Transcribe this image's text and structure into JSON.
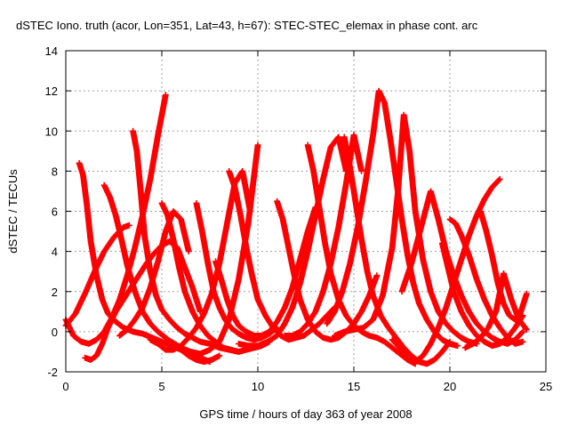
{
  "chart_data": {
    "type": "scatter",
    "title": "dSTEC Iono. truth (acor, Lon=351, Lat=43, h=67): STEC-STEC_elemax in phase cont. arc",
    "xlabel": "GPS time / hours of day 363 of year 2008",
    "ylabel": "dSTEC  / TECUs",
    "xlim": [
      0,
      25
    ],
    "ylim": [
      -2,
      14
    ],
    "xticks": [
      0,
      5,
      10,
      15,
      20,
      25
    ],
    "yticks": [
      -2,
      0,
      2,
      4,
      6,
      8,
      10,
      12,
      14
    ],
    "xtick_labels": [
      "0",
      "5",
      "10",
      "15",
      "20",
      "25"
    ],
    "ytick_labels": [
      "-2",
      "0",
      "2",
      "4",
      "6",
      "8",
      "10",
      "12",
      "14"
    ],
    "grid": true,
    "marker": "plus",
    "color": "#ff0000",
    "series": [
      {
        "x": [
          0.0,
          0.4,
          0.8,
          1.2,
          1.6,
          2.0,
          2.4,
          2.8,
          3.2,
          3.6,
          4.0,
          4.4,
          4.8,
          5.2
        ],
        "values": [
          0.6,
          -0.2,
          -0.5,
          -0.6,
          -0.4,
          0.0,
          0.7,
          1.6,
          2.8,
          4.2,
          5.8,
          7.6,
          9.8,
          11.8
        ]
      },
      {
        "x": [
          0.7,
          0.9,
          1.1,
          1.3,
          1.6,
          1.9,
          2.2,
          2.6,
          3.0,
          3.5,
          4.0,
          4.5,
          5.0,
          5.5,
          6.0,
          6.5,
          7.0,
          7.5
        ],
        "values": [
          8.4,
          7.8,
          6.3,
          4.5,
          2.8,
          1.6,
          0.9,
          0.5,
          0.2,
          0.0,
          -0.1,
          -0.3,
          -0.5,
          -0.7,
          -0.9,
          -1.1,
          -1.3,
          -1.5
        ]
      },
      {
        "x": [
          0.0,
          0.5,
          1.0,
          1.5,
          2.0,
          2.5,
          3.0,
          3.3
        ],
        "values": [
          0.3,
          0.9,
          1.9,
          3.0,
          4.0,
          4.7,
          5.2,
          5.3
        ]
      },
      {
        "x": [
          1.0,
          1.3,
          1.6,
          1.9,
          2.2,
          2.6,
          3.0,
          3.4,
          3.8,
          4.2,
          4.6,
          5.0,
          5.4,
          5.8,
          6.2,
          6.6,
          7.0
        ],
        "values": [
          -1.3,
          -1.4,
          -1.2,
          -0.6,
          0.2,
          1.0,
          1.6,
          2.2,
          2.8,
          3.4,
          3.9,
          4.3,
          4.5,
          4.2,
          3.2,
          2.2,
          1.0
        ]
      },
      {
        "x": [
          2.0,
          2.3,
          2.6,
          2.9,
          3.2,
          3.6,
          4.0,
          4.4,
          4.8,
          5.2,
          5.6,
          6.0,
          6.4,
          6.8,
          7.2,
          7.6,
          8.0
        ],
        "values": [
          7.3,
          6.7,
          5.8,
          4.6,
          3.3,
          2.0,
          1.0,
          0.4,
          0.0,
          -0.3,
          -0.6,
          -0.9,
          -1.2,
          -1.4,
          -1.5,
          -1.4,
          -1.2
        ]
      },
      {
        "x": [
          3.5,
          3.7,
          3.9,
          4.1,
          4.4,
          4.7,
          5.0,
          5.4,
          5.8,
          6.2,
          6.6,
          7.0,
          7.5,
          8.0,
          8.5,
          9.0
        ],
        "values": [
          10.0,
          9.0,
          7.0,
          4.8,
          3.0,
          1.8,
          1.1,
          0.6,
          0.2,
          -0.1,
          -0.3,
          -0.5,
          -0.6,
          -0.8,
          -0.9,
          -1.0
        ]
      },
      {
        "x": [
          2.8,
          3.2,
          3.6,
          4.0,
          4.4,
          4.8,
          5.2,
          5.6,
          6.0,
          6.4
        ],
        "values": [
          -0.2,
          0.1,
          0.6,
          1.2,
          2.2,
          3.5,
          5.0,
          6.0,
          5.6,
          4.0
        ]
      },
      {
        "x": [
          5.0,
          5.3,
          5.6,
          5.9,
          6.2,
          6.6,
          7.0,
          7.4,
          7.8,
          8.2,
          8.6,
          9.0,
          9.4,
          9.8,
          10.2,
          10.6
        ],
        "values": [
          6.4,
          5.8,
          4.6,
          3.2,
          2.0,
          1.0,
          0.3,
          -0.2,
          -0.5,
          -0.8,
          -0.9,
          -1.0,
          -0.9,
          -0.8,
          -0.7,
          -0.5
        ]
      },
      {
        "x": [
          4.4,
          4.8,
          5.2,
          5.6,
          6.0,
          6.4,
          6.8,
          7.2,
          7.6,
          8.0,
          8.4,
          8.8,
          9.2,
          9.6
        ],
        "values": [
          -0.4,
          -0.6,
          -0.9,
          -0.9,
          -0.7,
          -0.3,
          0.2,
          0.9,
          1.9,
          3.4,
          5.4,
          7.4,
          8.0,
          6.0
        ]
      },
      {
        "x": [
          5.5,
          6.0,
          6.5,
          7.0,
          7.5,
          8.0,
          8.5,
          9.0,
          9.5,
          10.0
        ],
        "values": [
          -0.5,
          -0.8,
          -1.0,
          -1.1,
          -0.9,
          -0.5,
          0.6,
          2.6,
          5.4,
          9.3
        ]
      },
      {
        "x": [
          6.8,
          7.1,
          7.4,
          7.7,
          8.0,
          8.3,
          8.6,
          9.0,
          9.4,
          9.8,
          10.2,
          10.6,
          11.0
        ],
        "values": [
          6.4,
          5.0,
          3.4,
          2.0,
          1.2,
          0.6,
          0.2,
          -0.1,
          -0.3,
          -0.4,
          -0.3,
          -0.1,
          0.2
        ]
      },
      {
        "x": [
          8.5,
          8.8,
          9.1,
          9.4,
          9.7,
          10.0,
          10.4,
          10.8,
          11.2,
          11.6,
          12.0,
          12.4,
          12.8,
          13.2,
          13.6,
          14.0
        ],
        "values": [
          8.0,
          7.2,
          5.8,
          4.2,
          2.8,
          1.6,
          0.8,
          0.2,
          -0.2,
          -0.4,
          -0.3,
          -0.2,
          0.1,
          0.4,
          0.8,
          1.2
        ]
      },
      {
        "x": [
          7.8,
          8.1,
          8.4,
          8.7,
          9.0,
          9.4,
          9.8,
          10.2,
          10.6,
          11.0,
          11.4,
          11.8,
          12.2,
          12.6,
          13.0
        ],
        "values": [
          3.5,
          2.6,
          1.6,
          0.8,
          0.3,
          0.0,
          -0.2,
          -0.2,
          0.0,
          0.5,
          1.2,
          2.2,
          3.6,
          5.0,
          6.2
        ]
      },
      {
        "x": [
          11.0,
          11.3,
          11.6,
          11.9,
          12.2,
          12.6,
          13.0,
          13.4,
          13.8,
          14.2,
          14.6,
          15.0,
          15.4,
          15.8,
          16.2
        ],
        "values": [
          6.5,
          5.6,
          4.2,
          2.8,
          1.6,
          0.6,
          0.0,
          -0.3,
          -0.4,
          -0.3,
          0.0,
          0.4,
          1.0,
          1.8,
          2.8
        ]
      },
      {
        "x": [
          9.0,
          9.5,
          10.0,
          10.5,
          11.0,
          11.4,
          11.8,
          12.2,
          12.6,
          13.0,
          13.4,
          13.8,
          14.2,
          14.6
        ],
        "values": [
          -0.6,
          -0.7,
          -0.7,
          -0.5,
          -0.2,
          0.4,
          1.2,
          2.4,
          4.0,
          5.8,
          7.6,
          9.2,
          9.7,
          8.0
        ]
      },
      {
        "x": [
          12.6,
          12.9,
          13.2,
          13.5,
          13.8,
          14.2,
          14.6,
          15.0,
          15.4,
          15.8,
          16.2,
          16.6,
          17.0,
          17.4,
          17.8,
          18.2
        ],
        "values": [
          9.3,
          8.0,
          6.2,
          4.4,
          2.9,
          1.6,
          0.8,
          0.3,
          0.0,
          -0.2,
          -0.3,
          -0.5,
          -0.8,
          -1.1,
          -1.4,
          -1.6
        ]
      },
      {
        "x": [
          11.4,
          11.8,
          12.2,
          12.6,
          13.0,
          13.4,
          13.8,
          14.2,
          14.6,
          15.0,
          15.4
        ],
        "values": [
          -0.2,
          -0.2,
          0.0,
          0.4,
          1.0,
          2.0,
          3.4,
          5.2,
          7.4,
          9.8,
          8.0
        ]
      },
      {
        "x": [
          14.5,
          14.8,
          15.1,
          15.4,
          15.7,
          16.0,
          16.4,
          16.8,
          17.2,
          17.6,
          18.0,
          18.4,
          18.8,
          19.2,
          19.6,
          20.0
        ],
        "values": [
          9.7,
          8.2,
          6.4,
          4.6,
          3.0,
          1.8,
          0.8,
          0.2,
          -0.3,
          -0.8,
          -1.2,
          -1.5,
          -1.6,
          -1.4,
          -1.0,
          -0.5
        ]
      },
      {
        "x": [
          13.6,
          14.0,
          14.4,
          14.8,
          15.2,
          15.6,
          16.0,
          16.3,
          16.6,
          16.9,
          17.2,
          17.5,
          17.8,
          18.1,
          18.4,
          18.8,
          19.2,
          19.6,
          20.0,
          20.4
        ],
        "values": [
          0.4,
          1.0,
          2.0,
          3.4,
          5.2,
          7.4,
          9.8,
          12.0,
          11.4,
          9.6,
          7.6,
          5.6,
          3.8,
          2.4,
          1.4,
          0.6,
          0.0,
          -0.4,
          -0.6,
          -0.7
        ]
      },
      {
        "x": [
          14.0,
          14.5,
          15.0,
          15.5,
          16.0,
          16.5,
          17.0,
          17.3,
          17.6,
          17.9,
          18.2,
          18.6,
          19.0,
          19.4,
          19.8,
          20.2,
          20.6,
          21.0,
          21.4
        ],
        "values": [
          -0.2,
          0.0,
          0.1,
          0.2,
          0.6,
          1.8,
          4.2,
          7.0,
          10.8,
          9.0,
          6.0,
          3.6,
          2.0,
          1.0,
          0.4,
          0.0,
          -0.3,
          -0.5,
          -0.6
        ]
      },
      {
        "x": [
          17.0,
          17.4,
          17.8,
          18.2,
          18.6,
          19.0,
          19.4,
          19.8,
          20.2,
          20.6,
          21.0,
          21.4,
          21.8,
          22.2,
          22.6
        ],
        "values": [
          -0.4,
          -0.8,
          -1.4,
          -1.5,
          -1.2,
          -0.6,
          0.2,
          1.2,
          2.4,
          3.6,
          4.8,
          5.8,
          6.6,
          7.2,
          7.6
        ]
      },
      {
        "x": [
          17.5,
          18.0,
          18.5,
          19.0,
          19.4,
          19.8,
          20.2,
          20.6,
          21.0,
          21.4,
          21.8,
          22.2,
          22.6,
          23.0,
          23.4,
          23.8
        ],
        "values": [
          2.0,
          3.4,
          5.2,
          7.0,
          5.6,
          4.0,
          2.8,
          1.8,
          1.0,
          0.4,
          0.0,
          -0.3,
          -0.5,
          -0.6,
          -0.4,
          0.0
        ]
      },
      {
        "x": [
          19.6,
          19.9,
          20.2,
          20.6,
          21.0,
          21.4,
          21.8,
          22.2,
          22.6,
          23.0,
          23.4,
          23.8
        ],
        "values": [
          4.4,
          3.2,
          2.0,
          1.0,
          0.3,
          -0.2,
          -0.5,
          -0.7,
          -0.6,
          -0.3,
          0.2,
          0.8
        ]
      },
      {
        "x": [
          20.0,
          20.3,
          20.6,
          21.0,
          21.4,
          21.8,
          22.2,
          22.6,
          23.0,
          23.4,
          23.8
        ],
        "values": [
          5.6,
          5.4,
          4.8,
          3.8,
          2.6,
          1.6,
          0.8,
          0.2,
          -0.3,
          -0.6,
          -0.5
        ]
      },
      {
        "x": [
          21.6,
          21.9,
          22.2,
          22.5,
          22.8,
          23.1,
          23.4,
          23.7,
          24.0
        ],
        "values": [
          6.0,
          5.0,
          3.8,
          2.4,
          1.4,
          0.8,
          0.6,
          1.0,
          1.9
        ]
      },
      {
        "x": [
          20.8,
          21.2,
          21.6,
          22.0,
          22.4,
          22.8,
          23.2,
          23.6,
          24.0
        ],
        "values": [
          -0.8,
          -0.6,
          -0.3,
          0.2,
          1.0,
          2.9,
          1.6,
          0.6,
          0.1
        ]
      }
    ]
  }
}
